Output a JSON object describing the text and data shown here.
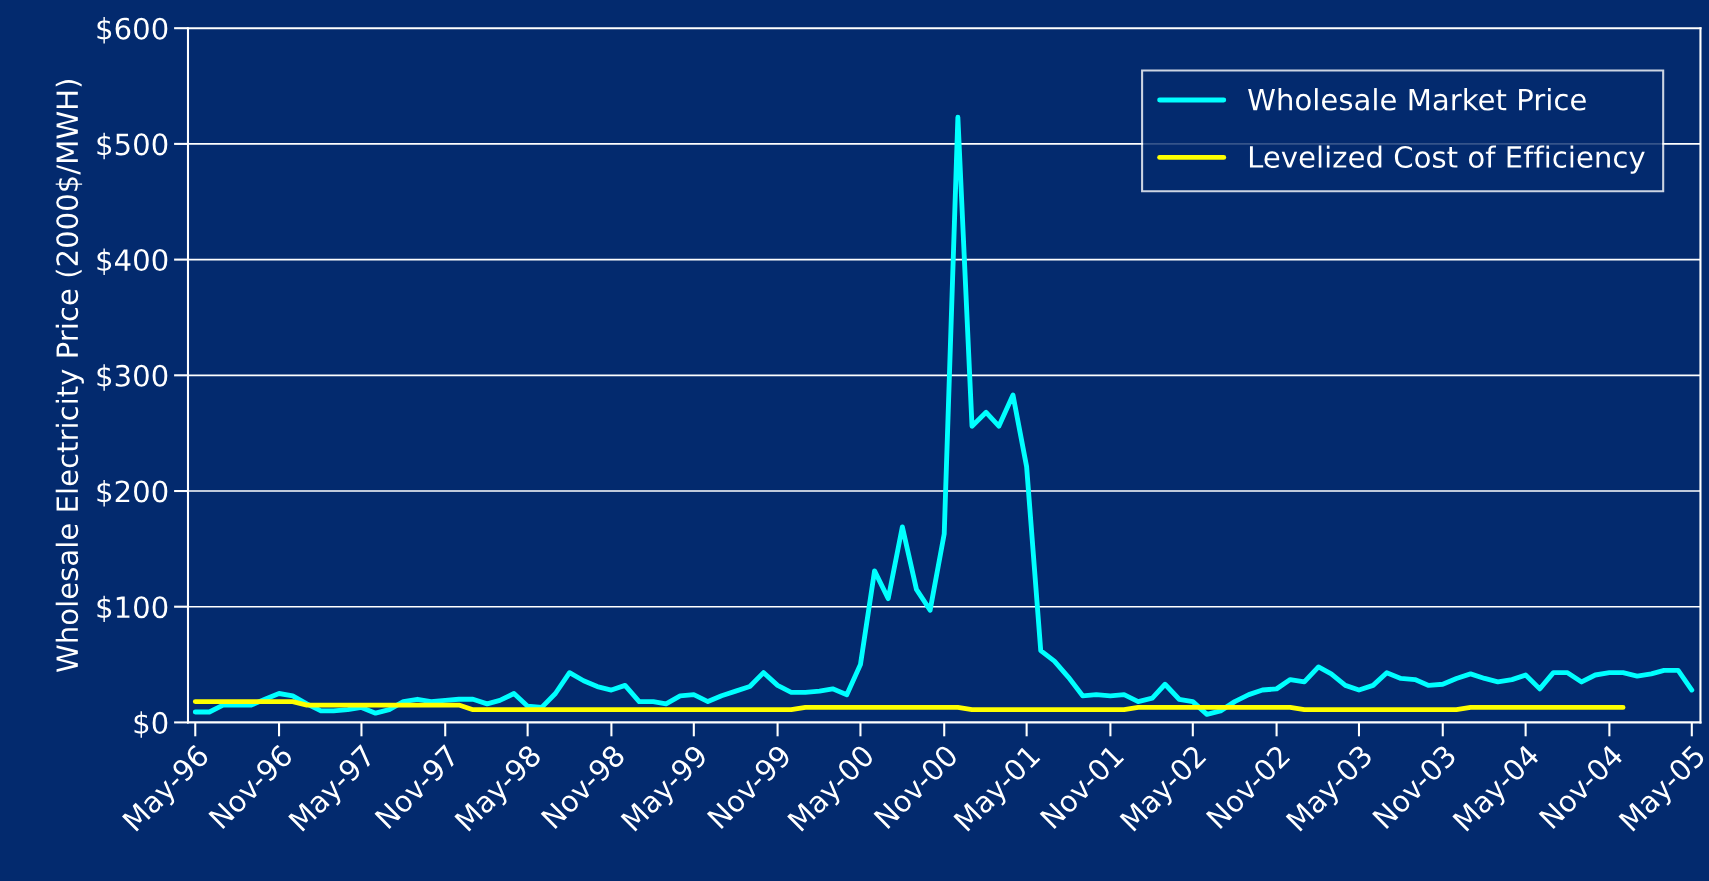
{
  "chart_data": {
    "type": "line",
    "ylabel": "Wholesale Electricity Price (2000$/MWH)",
    "x": [
      "1996-05",
      "1996-06",
      "1996-07",
      "1996-08",
      "1996-09",
      "1996-10",
      "1996-11",
      "1996-12",
      "1997-01",
      "1997-02",
      "1997-03",
      "1997-04",
      "1997-05",
      "1997-06",
      "1997-07",
      "1997-08",
      "1997-09",
      "1997-10",
      "1997-11",
      "1997-12",
      "1998-01",
      "1998-02",
      "1998-03",
      "1998-04",
      "1998-05",
      "1998-06",
      "1998-07",
      "1998-08",
      "1998-09",
      "1998-10",
      "1998-11",
      "1998-12",
      "1999-01",
      "1999-02",
      "1999-03",
      "1999-04",
      "1999-05",
      "1999-06",
      "1999-07",
      "1999-08",
      "1999-09",
      "1999-10",
      "1999-11",
      "1999-12",
      "2000-01",
      "2000-02",
      "2000-03",
      "2000-04",
      "2000-05",
      "2000-06",
      "2000-07",
      "2000-08",
      "2000-09",
      "2000-10",
      "2000-11",
      "2000-12",
      "2001-01",
      "2001-02",
      "2001-03",
      "2001-04",
      "2001-05",
      "2001-06",
      "2001-07",
      "2001-08",
      "2001-09",
      "2001-10",
      "2001-11",
      "2001-12",
      "2002-01",
      "2002-02",
      "2002-03",
      "2002-04",
      "2002-05",
      "2002-06",
      "2002-07",
      "2002-08",
      "2002-09",
      "2002-10",
      "2002-11",
      "2002-12",
      "2003-01",
      "2003-02",
      "2003-03",
      "2003-04",
      "2003-05",
      "2003-06",
      "2003-07",
      "2003-08",
      "2003-09",
      "2003-10",
      "2003-11",
      "2003-12",
      "2004-01",
      "2004-02",
      "2004-03",
      "2004-04",
      "2004-05",
      "2004-06",
      "2004-07",
      "2004-08",
      "2004-09",
      "2004-10",
      "2004-11",
      "2004-12",
      "2005-01",
      "2005-02",
      "2005-03",
      "2005-04",
      "2005-05"
    ],
    "series": [
      {
        "name": "Wholesale Market Price",
        "color": "#00ffff",
        "values": [
          9,
          9,
          15,
          15,
          15,
          20,
          25,
          23,
          16,
          10,
          10,
          11,
          13,
          8,
          11,
          18,
          20,
          18,
          19,
          20,
          20,
          16,
          19,
          25,
          14,
          13,
          25,
          43,
          36,
          31,
          28,
          32,
          18,
          18,
          16,
          23,
          24,
          18,
          23,
          27,
          31,
          43,
          32,
          26,
          26,
          27,
          29,
          24,
          50,
          131,
          107,
          169,
          115,
          97,
          163,
          523,
          256,
          268,
          256,
          283,
          221,
          62,
          53,
          39,
          23,
          24,
          23,
          24,
          18,
          21,
          33,
          20,
          18,
          7,
          10,
          18,
          24,
          28,
          29,
          37,
          35,
          48,
          42,
          32,
          28,
          32,
          43,
          38,
          37,
          32,
          33,
          38,
          42,
          38,
          35,
          37,
          41,
          29,
          43,
          43,
          35,
          41,
          43,
          43,
          40,
          42,
          45,
          45,
          28
        ]
      },
      {
        "name": "Levelized Cost of Efficiency",
        "color": "#ffff00",
        "values": [
          18,
          18,
          18,
          18,
          18,
          18,
          18,
          18,
          15,
          15,
          15,
          15,
          15,
          15,
          15,
          15,
          15,
          15,
          15,
          15,
          11,
          11,
          11,
          11,
          11,
          11,
          11,
          11,
          11,
          11,
          11,
          11,
          11,
          11,
          11,
          11,
          11,
          11,
          11,
          11,
          11,
          11,
          11,
          11,
          13,
          13,
          13,
          13,
          13,
          13,
          13,
          13,
          13,
          13,
          13,
          13,
          11,
          11,
          11,
          11,
          11,
          11,
          11,
          11,
          11,
          11,
          11,
          11,
          13,
          13,
          13,
          13,
          13,
          13,
          13,
          13,
          13,
          13,
          13,
          13,
          11,
          11,
          11,
          11,
          11,
          11,
          11,
          11,
          11,
          11,
          11,
          11,
          13,
          13,
          13,
          13,
          13,
          13,
          13,
          13,
          13,
          13,
          13,
          13,
          null,
          null,
          null,
          null,
          null
        ]
      }
    ],
    "xlim": [
      "1996-04-15",
      "2005-05-20"
    ],
    "xticks": [
      {
        "value": "1996-05",
        "label": "May-96"
      },
      {
        "value": "1996-11",
        "label": "Nov-96"
      },
      {
        "value": "1997-05",
        "label": "May-97"
      },
      {
        "value": "1997-11",
        "label": "Nov-97"
      },
      {
        "value": "1998-05",
        "label": "May-98"
      },
      {
        "value": "1998-11",
        "label": "Nov-98"
      },
      {
        "value": "1999-05",
        "label": "May-99"
      },
      {
        "value": "1999-11",
        "label": "Nov-99"
      },
      {
        "value": "2000-05",
        "label": "May-00"
      },
      {
        "value": "2000-11",
        "label": "Nov-00"
      },
      {
        "value": "2001-05",
        "label": "May-01"
      },
      {
        "value": "2001-11",
        "label": "Nov-01"
      },
      {
        "value": "2002-05",
        "label": "May-02"
      },
      {
        "value": "2002-11",
        "label": "Nov-02"
      },
      {
        "value": "2003-05",
        "label": "May-03"
      },
      {
        "value": "2003-11",
        "label": "Nov-03"
      },
      {
        "value": "2004-05",
        "label": "May-04"
      },
      {
        "value": "2004-11",
        "label": "Nov-04"
      },
      {
        "value": "2005-05",
        "label": "May-05"
      }
    ],
    "ylim": [
      0,
      600
    ],
    "yticks": [
      {
        "value": 0,
        "label": "$0"
      },
      {
        "value": 100,
        "label": "$100"
      },
      {
        "value": 200,
        "label": "$200"
      },
      {
        "value": 300,
        "label": "$300"
      },
      {
        "value": 400,
        "label": "$400"
      },
      {
        "value": 500,
        "label": "$500"
      },
      {
        "value": 600,
        "label": "$600"
      }
    ],
    "grid": "y",
    "legend": "top right",
    "marker": "none",
    "line_style": "solid"
  }
}
